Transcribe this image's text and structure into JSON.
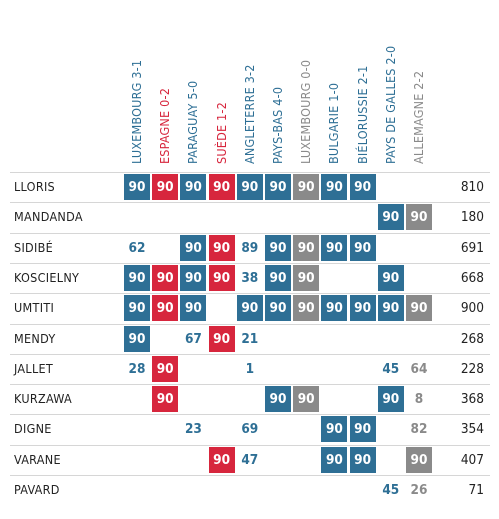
{
  "chart_data": {
    "type": "table",
    "matches": [
      {
        "label": "LUXEMBOURG 3-1",
        "result": "win"
      },
      {
        "label": "ESPAGNE 0-2",
        "result": "loss"
      },
      {
        "label": "PARAGUAY 5-0",
        "result": "win"
      },
      {
        "label": "SUÈDE 1-2",
        "result": "loss"
      },
      {
        "label": "ANGLETERRE 3-2",
        "result": "win"
      },
      {
        "label": "PAYS-BAS 4-0",
        "result": "win"
      },
      {
        "label": "LUXEMBOURG 0-0",
        "result": "draw"
      },
      {
        "label": "BULGARIE 1-0",
        "result": "win"
      },
      {
        "label": "BIÉLORUSSIE 2-1",
        "result": "win"
      },
      {
        "label": "PAYS DE GALLES 2-0",
        "result": "win"
      },
      {
        "label": "ALLEMAGNE 2-2",
        "result": "draw"
      }
    ],
    "colors": {
      "win": "#2e6f95",
      "loss": "#d7263d",
      "draw": "#8a8a8a"
    },
    "players": [
      {
        "name": "LLORIS",
        "minutes": [
          90,
          90,
          90,
          90,
          90,
          90,
          90,
          90,
          90,
          null,
          null
        ],
        "total": 810
      },
      {
        "name": "MANDANDA",
        "minutes": [
          null,
          null,
          null,
          null,
          null,
          null,
          null,
          null,
          null,
          90,
          90
        ],
        "total": 180
      },
      {
        "name": "SIDIBÉ",
        "minutes": [
          62,
          null,
          90,
          90,
          89,
          90,
          90,
          90,
          90,
          null,
          null
        ],
        "total": 691
      },
      {
        "name": "KOSCIELNY",
        "minutes": [
          90,
          90,
          90,
          90,
          38,
          90,
          90,
          null,
          null,
          90,
          null
        ],
        "total": 668
      },
      {
        "name": "UMTITI",
        "minutes": [
          90,
          90,
          90,
          null,
          90,
          90,
          90,
          90,
          90,
          90,
          90
        ],
        "total": 900
      },
      {
        "name": "MENDY",
        "minutes": [
          90,
          null,
          67,
          90,
          21,
          null,
          null,
          null,
          null,
          null,
          null
        ],
        "total": 268
      },
      {
        "name": "JALLET",
        "minutes": [
          28,
          90,
          null,
          null,
          1,
          null,
          null,
          null,
          null,
          45,
          64
        ],
        "total": 228
      },
      {
        "name": "KURZAWA",
        "minutes": [
          null,
          90,
          null,
          null,
          null,
          90,
          90,
          null,
          null,
          90,
          8
        ],
        "total": 368
      },
      {
        "name": "DIGNE",
        "minutes": [
          null,
          null,
          23,
          null,
          69,
          null,
          null,
          90,
          90,
          null,
          82
        ],
        "total": 354
      },
      {
        "name": "VARANE",
        "minutes": [
          null,
          null,
          null,
          90,
          47,
          null,
          null,
          90,
          90,
          null,
          90
        ],
        "total": 407
      },
      {
        "name": "PAVARD",
        "minutes": [
          null,
          null,
          null,
          null,
          null,
          null,
          null,
          null,
          null,
          45,
          26
        ],
        "total": 71
      }
    ]
  }
}
